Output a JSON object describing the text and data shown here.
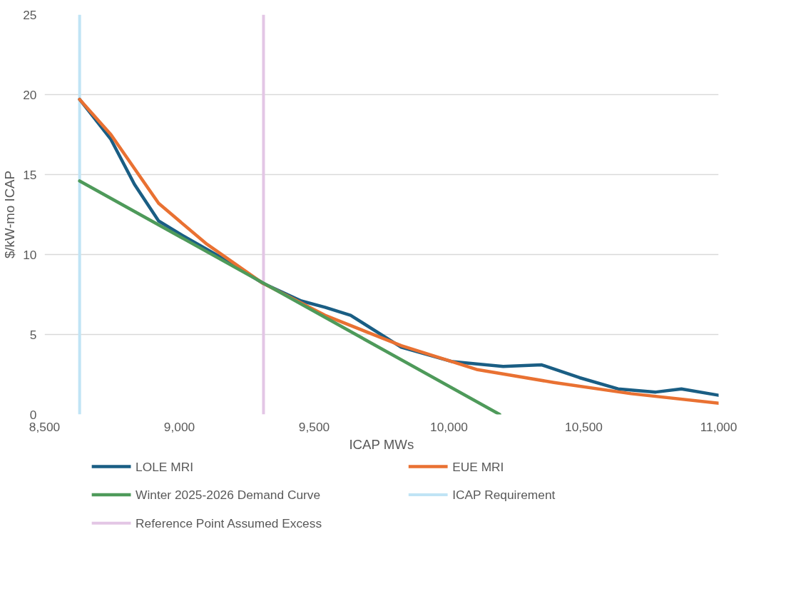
{
  "chart_data": {
    "type": "line",
    "xlabel": "ICAP MWs",
    "ylabel": "$/kW-mo ICAP",
    "xlim": [
      8500,
      11000
    ],
    "xticks": [
      {
        "value": 8500,
        "label": "8,500"
      },
      {
        "value": 9000,
        "label": "9,000"
      },
      {
        "value": 9500,
        "label": "9,500"
      },
      {
        "value": 10000,
        "label": "10,000"
      },
      {
        "value": 10500,
        "label": "10,500"
      },
      {
        "value": 11000,
        "label": "11,000"
      }
    ],
    "ylim": [
      0,
      25
    ],
    "yticks": [
      0,
      5,
      10,
      15,
      20,
      25
    ],
    "grid": "y",
    "legend": "bottom",
    "series": [
      {
        "name": "LOLE MRI",
        "color": "#1a5e84",
        "x": [
          8630,
          8746,
          8833,
          8923,
          9011,
          9188,
          9310,
          9452,
          9540,
          9635,
          9823,
          10013,
          10201,
          10344,
          10484,
          10627,
          10767,
          10862,
          11000
        ],
        "values": [
          19.7,
          17.2,
          14.4,
          12.1,
          11.2,
          9.5,
          8.2,
          7.1,
          6.7,
          6.2,
          4.2,
          3.3,
          3.0,
          3.1,
          2.3,
          1.6,
          1.4,
          1.6,
          1.2
        ]
      },
      {
        "name": "EUE MRI",
        "color": "#e97132",
        "x": [
          8630,
          8746,
          8923,
          9098,
          9310,
          9540,
          9823,
          10106,
          10389,
          10675,
          11000
        ],
        "values": [
          19.7,
          17.5,
          13.2,
          10.7,
          8.2,
          6.2,
          4.3,
          2.8,
          2.0,
          1.3,
          0.7
        ]
      },
      {
        "name": "Winter 2025-2026 Demand Curve",
        "color": "#4e9a5a",
        "x": [
          8630,
          10188
        ],
        "values": [
          14.6,
          0
        ]
      }
    ],
    "ref_lines": [
      {
        "axis": "x",
        "value": 8630,
        "label": "ICAP Requirement",
        "color": "#c0e4f5"
      },
      {
        "axis": "x",
        "value": 9312,
        "label": "Reference Point Assumed Excess",
        "color": "#e3c6e5"
      }
    ]
  }
}
